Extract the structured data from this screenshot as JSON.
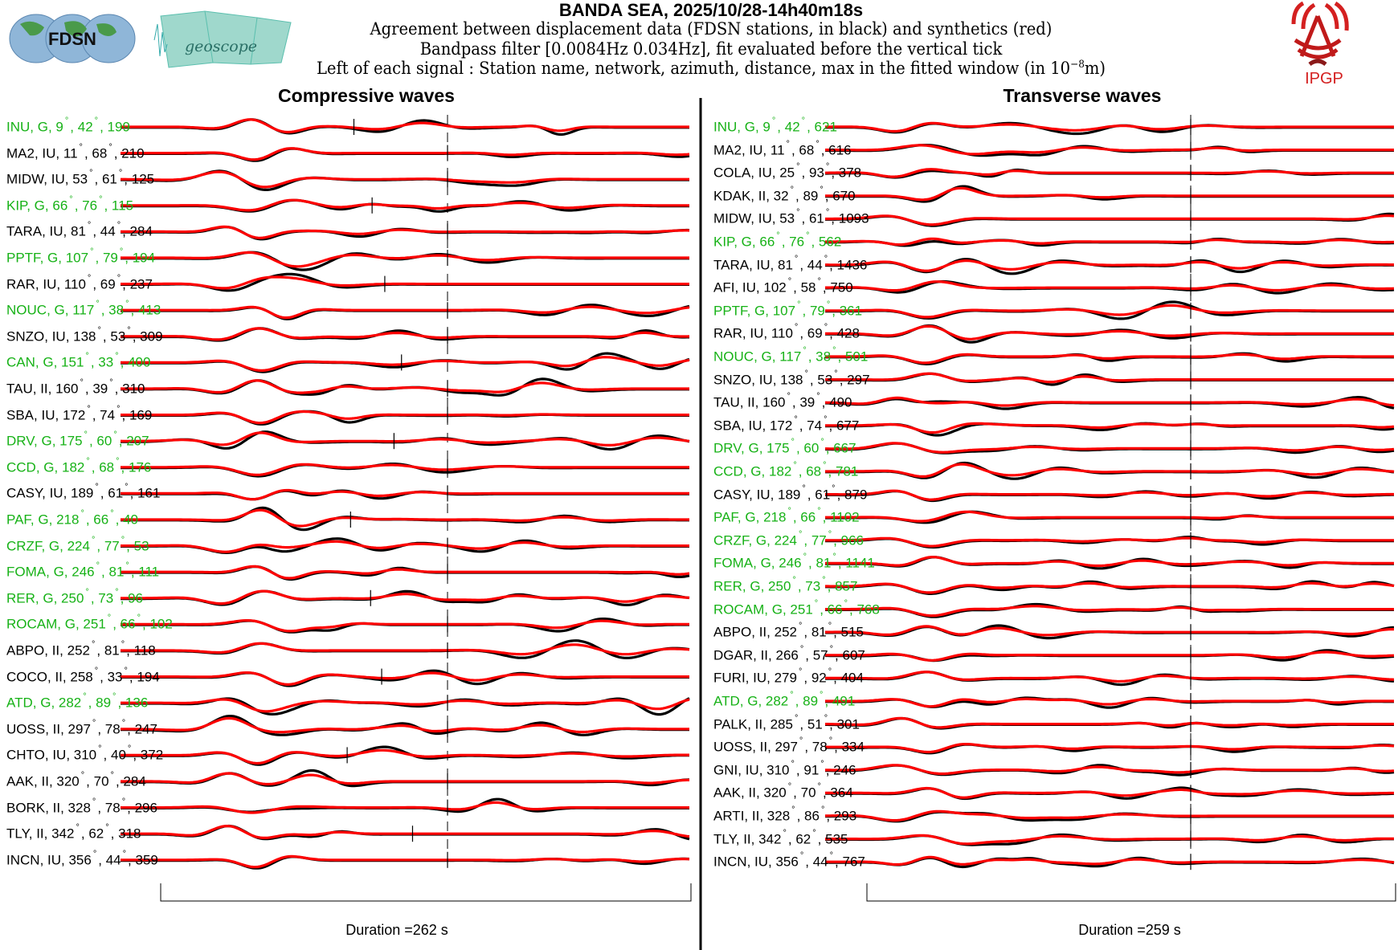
{
  "header": {
    "title": "BANDA SEA, 2025/10/28-14h40m18s",
    "line1": "Agreement between displacement data (FDSN stations, in black) and synthetics (red)",
    "line2": "Bandpass filter [0.0084Hz 0.034Hz], fit evaluated before the vertical tick",
    "line3_prefix": "Left of each signal : Station name, network, azimuth, distance, max in the fitted window (in 10",
    "line3_exp": "−8",
    "line3_suffix": "m)",
    "logos": {
      "fdsn": "FDSN",
      "geoscope": "geoscope",
      "ipgp": "IPGP"
    }
  },
  "colors": {
    "data": "#000000",
    "synthetic": "#ff0000",
    "geoscope_station": "#17b217",
    "other_station": "#000000"
  },
  "chart_data": [
    {
      "type": "line",
      "title": "Compressive waves",
      "duration_label": "Duration =262 s",
      "duration_s": 262,
      "series": [
        "data (black)",
        "synthetics (red)"
      ],
      "rows": [
        {
          "station": "INU",
          "network": "G",
          "azimuth": "9",
          "distance": "42",
          "max": "199",
          "geoscope": true
        },
        {
          "station": "MA2",
          "network": "IU",
          "azimuth": "11",
          "distance": "68",
          "max": "210",
          "geoscope": false
        },
        {
          "station": "MIDW",
          "network": "IU",
          "azimuth": "53",
          "distance": "61",
          "max": "125",
          "geoscope": false
        },
        {
          "station": "KIP",
          "network": "G",
          "azimuth": "66",
          "distance": "76",
          "max": "115",
          "geoscope": true
        },
        {
          "station": "TARA",
          "network": "IU",
          "azimuth": "81",
          "distance": "44",
          "max": "284",
          "geoscope": false
        },
        {
          "station": "PPTF",
          "network": "G",
          "azimuth": "107",
          "distance": "79",
          "max": "194",
          "geoscope": true
        },
        {
          "station": "RAR",
          "network": "IU",
          "azimuth": "110",
          "distance": "69",
          "max": "237",
          "geoscope": false
        },
        {
          "station": "NOUC",
          "network": "G",
          "azimuth": "117",
          "distance": "38",
          "max": "413",
          "geoscope": true
        },
        {
          "station": "SNZO",
          "network": "IU",
          "azimuth": "138",
          "distance": "53",
          "max": "309",
          "geoscope": false
        },
        {
          "station": "CAN",
          "network": "G",
          "azimuth": "151",
          "distance": "33",
          "max": "400",
          "geoscope": true
        },
        {
          "station": "TAU",
          "network": "II",
          "azimuth": "160",
          "distance": "39",
          "max": "310",
          "geoscope": false
        },
        {
          "station": "SBA",
          "network": "IU",
          "azimuth": "172",
          "distance": "74",
          "max": "169",
          "geoscope": false
        },
        {
          "station": "DRV",
          "network": "G",
          "azimuth": "175",
          "distance": "60",
          "max": "207",
          "geoscope": true
        },
        {
          "station": "CCD",
          "network": "G",
          "azimuth": "182",
          "distance": "68",
          "max": "176",
          "geoscope": true
        },
        {
          "station": "CASY",
          "network": "IU",
          "azimuth": "189",
          "distance": "61",
          "max": "161",
          "geoscope": false
        },
        {
          "station": "PAF",
          "network": "G",
          "azimuth": "218",
          "distance": "66",
          "max": "40",
          "geoscope": true
        },
        {
          "station": "CRZF",
          "network": "G",
          "azimuth": "224",
          "distance": "77",
          "max": "53",
          "geoscope": true
        },
        {
          "station": "FOMA",
          "network": "G",
          "azimuth": "246",
          "distance": "81",
          "max": "111",
          "geoscope": true
        },
        {
          "station": "RER",
          "network": "G",
          "azimuth": "250",
          "distance": "73",
          "max": "96",
          "geoscope": true
        },
        {
          "station": "ROCAM",
          "network": "G",
          "azimuth": "251",
          "distance": "66",
          "max": "102",
          "geoscope": true
        },
        {
          "station": "ABPO",
          "network": "II",
          "azimuth": "252",
          "distance": "81",
          "max": "118",
          "geoscope": false
        },
        {
          "station": "COCO",
          "network": "II",
          "azimuth": "258",
          "distance": "33",
          "max": "194",
          "geoscope": false
        },
        {
          "station": "ATD",
          "network": "G",
          "azimuth": "282",
          "distance": "89",
          "max": "136",
          "geoscope": true
        },
        {
          "station": "UOSS",
          "network": "II",
          "azimuth": "297",
          "distance": "78",
          "max": "247",
          "geoscope": false
        },
        {
          "station": "CHTO",
          "network": "IU",
          "azimuth": "310",
          "distance": "40",
          "max": "372",
          "geoscope": false
        },
        {
          "station": "AAK",
          "network": "II",
          "azimuth": "320",
          "distance": "70",
          "max": "284",
          "geoscope": false
        },
        {
          "station": "BORK",
          "network": "II",
          "azimuth": "328",
          "distance": "78",
          "max": "296",
          "geoscope": false
        },
        {
          "station": "TLY",
          "network": "II",
          "azimuth": "342",
          "distance": "62",
          "max": "318",
          "geoscope": false
        },
        {
          "station": "INCN",
          "network": "IU",
          "azimuth": "356",
          "distance": "44",
          "max": "359",
          "geoscope": false
        }
      ]
    },
    {
      "type": "line",
      "title": "Transverse waves",
      "duration_label": "Duration =259 s",
      "duration_s": 259,
      "series": [
        "data (black)",
        "synthetics (red)"
      ],
      "rows": [
        {
          "station": "INU",
          "network": "G",
          "azimuth": "9",
          "distance": "42",
          "max": "621",
          "geoscope": true
        },
        {
          "station": "MA2",
          "network": "IU",
          "azimuth": "11",
          "distance": "68",
          "max": "616",
          "geoscope": false
        },
        {
          "station": "COLA",
          "network": "IU",
          "azimuth": "25",
          "distance": "93",
          "max": "378",
          "geoscope": false
        },
        {
          "station": "KDAK",
          "network": "II",
          "azimuth": "32",
          "distance": "89",
          "max": "670",
          "geoscope": false
        },
        {
          "station": "MIDW",
          "network": "IU",
          "azimuth": "53",
          "distance": "61",
          "max": "1093",
          "geoscope": false
        },
        {
          "station": "KIP",
          "network": "G",
          "azimuth": "66",
          "distance": "76",
          "max": "562",
          "geoscope": true
        },
        {
          "station": "TARA",
          "network": "IU",
          "azimuth": "81",
          "distance": "44",
          "max": "1436",
          "geoscope": false
        },
        {
          "station": "AFI",
          "network": "IU",
          "azimuth": "102",
          "distance": "58",
          "max": "750",
          "geoscope": false
        },
        {
          "station": "PPTF",
          "network": "G",
          "azimuth": "107",
          "distance": "79",
          "max": "361",
          "geoscope": true
        },
        {
          "station": "RAR",
          "network": "IU",
          "azimuth": "110",
          "distance": "69",
          "max": "428",
          "geoscope": false
        },
        {
          "station": "NOUC",
          "network": "G",
          "azimuth": "117",
          "distance": "38",
          "max": "501",
          "geoscope": true
        },
        {
          "station": "SNZO",
          "network": "IU",
          "azimuth": "138",
          "distance": "53",
          "max": "297",
          "geoscope": false
        },
        {
          "station": "TAU",
          "network": "II",
          "azimuth": "160",
          "distance": "39",
          "max": "490",
          "geoscope": false
        },
        {
          "station": "SBA",
          "network": "IU",
          "azimuth": "172",
          "distance": "74",
          "max": "677",
          "geoscope": false
        },
        {
          "station": "DRV",
          "network": "G",
          "azimuth": "175",
          "distance": "60",
          "max": "667",
          "geoscope": true
        },
        {
          "station": "CCD",
          "network": "G",
          "azimuth": "182",
          "distance": "68",
          "max": "781",
          "geoscope": true
        },
        {
          "station": "CASY",
          "network": "IU",
          "azimuth": "189",
          "distance": "61",
          "max": "879",
          "geoscope": false
        },
        {
          "station": "PAF",
          "network": "G",
          "azimuth": "218",
          "distance": "66",
          "max": "1102",
          "geoscope": true
        },
        {
          "station": "CRZF",
          "network": "G",
          "azimuth": "224",
          "distance": "77",
          "max": "966",
          "geoscope": true
        },
        {
          "station": "FOMA",
          "network": "G",
          "azimuth": "246",
          "distance": "81",
          "max": "1141",
          "geoscope": true
        },
        {
          "station": "RER",
          "network": "G",
          "azimuth": "250",
          "distance": "73",
          "max": "857",
          "geoscope": true
        },
        {
          "station": "ROCAM",
          "network": "G",
          "azimuth": "251",
          "distance": "66",
          "max": "768",
          "geoscope": true
        },
        {
          "station": "ABPO",
          "network": "II",
          "azimuth": "252",
          "distance": "81",
          "max": "515",
          "geoscope": false
        },
        {
          "station": "DGAR",
          "network": "II",
          "azimuth": "266",
          "distance": "57",
          "max": "607",
          "geoscope": false
        },
        {
          "station": "FURI",
          "network": "IU",
          "azimuth": "279",
          "distance": "92",
          "max": "404",
          "geoscope": false
        },
        {
          "station": "ATD",
          "network": "G",
          "azimuth": "282",
          "distance": "89",
          "max": "491",
          "geoscope": true
        },
        {
          "station": "PALK",
          "network": "II",
          "azimuth": "285",
          "distance": "51",
          "max": "301",
          "geoscope": false
        },
        {
          "station": "UOSS",
          "network": "II",
          "azimuth": "297",
          "distance": "78",
          "max": "334",
          "geoscope": false
        },
        {
          "station": "GNI",
          "network": "IU",
          "azimuth": "310",
          "distance": "91",
          "max": "246",
          "geoscope": false
        },
        {
          "station": "AAK",
          "network": "II",
          "azimuth": "320",
          "distance": "70",
          "max": "364",
          "geoscope": false
        },
        {
          "station": "ARTI",
          "network": "II",
          "azimuth": "328",
          "distance": "86",
          "max": "293",
          "geoscope": false
        },
        {
          "station": "TLY",
          "network": "II",
          "azimuth": "342",
          "distance": "62",
          "max": "535",
          "geoscope": false
        },
        {
          "station": "INCN",
          "network": "IU",
          "azimuth": "356",
          "distance": "44",
          "max": "767",
          "geoscope": false
        }
      ]
    }
  ]
}
